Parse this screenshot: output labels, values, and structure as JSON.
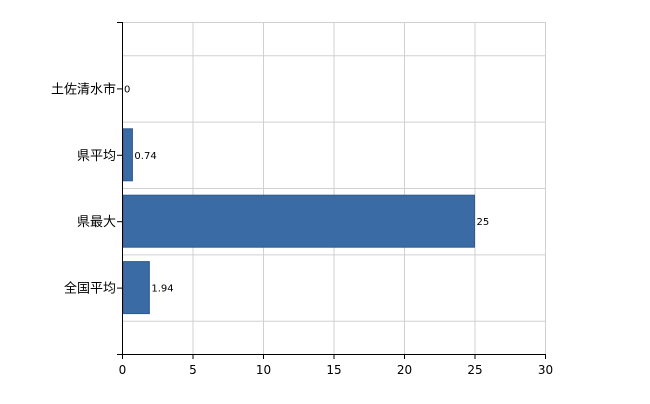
{
  "chart_data": {
    "type": "bar",
    "orientation": "horizontal",
    "categories": [
      "土佐清水市",
      "県平均",
      "県最大",
      "全国平均"
    ],
    "values": [
      0,
      0.74,
      25,
      1.94
    ],
    "value_labels": [
      "0",
      "0.74",
      "25",
      "1.94"
    ],
    "x_ticks": [
      0,
      5,
      10,
      15,
      20,
      25,
      30
    ],
    "xlim": [
      0,
      30
    ],
    "grid": true,
    "legend": "none",
    "title": "",
    "xlabel": "",
    "ylabel": "",
    "bar_color": "#3a6ba5",
    "bar_edge_color": "#2f5a8f",
    "grid_color": "#d0d0d0",
    "axis_color": "#000000"
  }
}
